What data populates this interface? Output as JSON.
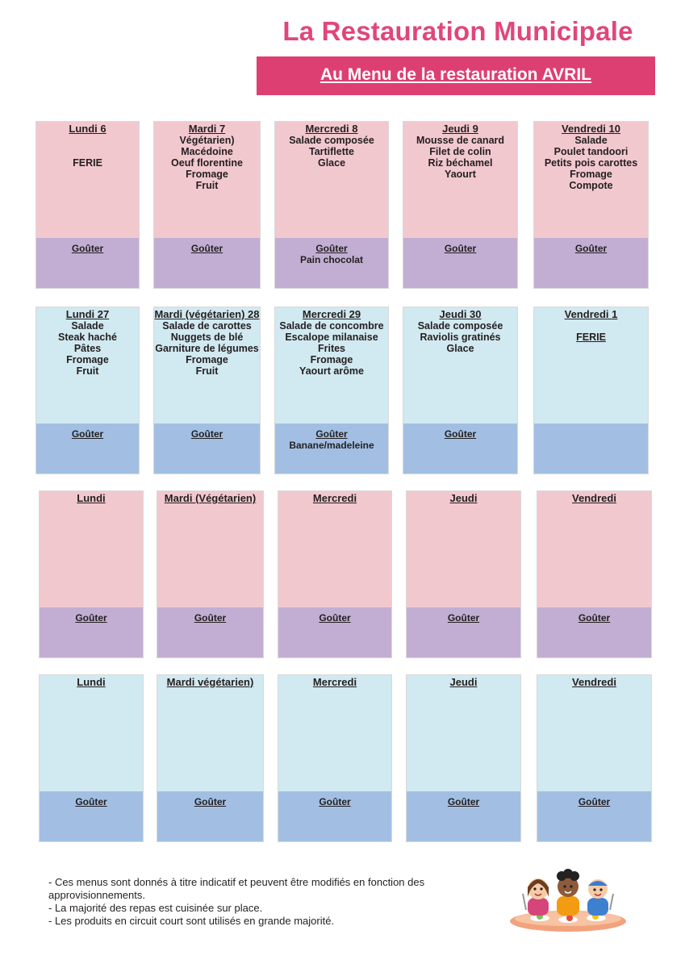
{
  "title": "La Restauration Municipale",
  "banner": "Au Menu de la restauration AVRIL",
  "weeks": [
    {
      "theme": "pink",
      "cells": [
        {
          "day": "Lundi  6",
          "items": [
            "",
            "",
            "FERIE"
          ],
          "gouter": "Goûter",
          "gouter_items": []
        },
        {
          "day": "Mardi  7",
          "items": [
            "Végétarien)",
            "Macédoine",
            "Oeuf florentine",
            "Fromage",
            "Fruit"
          ],
          "gouter": "Goûter",
          "gouter_items": []
        },
        {
          "day": "Mercredi 8",
          "items": [
            "Salade composée",
            "Tartiflette",
            "Glace"
          ],
          "gouter": "Goûter",
          "gouter_items": [
            "Pain chocolat"
          ]
        },
        {
          "day": "Jeudi 9",
          "items": [
            "Mousse de canard",
            "Filet de colin",
            "Riz béchamel",
            "Yaourt"
          ],
          "gouter": "Goûter",
          "gouter_items": []
        },
        {
          "day": "Vendredi 10",
          "items": [
            "Salade",
            "Poulet tandoori",
            "Petits pois carottes",
            "Fromage",
            "Compote"
          ],
          "gouter": "Goûter",
          "gouter_items": []
        }
      ]
    },
    {
      "theme": "blue",
      "cells": [
        {
          "day": "Lundi  27",
          "items": [
            "Salade",
            "Steak haché",
            "Pâtes",
            "Fromage",
            "Fruit"
          ],
          "gouter": "Goûter",
          "gouter_items": []
        },
        {
          "day": "Mardi  (végétarien) 28",
          "items": [
            "Salade de carottes",
            "Nuggets de blé",
            "Garniture de légumes",
            "Fromage",
            "Fruit"
          ],
          "gouter": "Goûter",
          "gouter_items": []
        },
        {
          "day": "Mercredi  29",
          "items": [
            "Salade de concombre",
            "Escalope milanaise",
            "Frites",
            "Fromage",
            "Yaourt arôme"
          ],
          "gouter": "Goûter",
          "gouter_items": [
            "Banane/madeleine"
          ]
        },
        {
          "day": "Jeudi  30",
          "items": [
            "Salade composée",
            "Raviolis gratinés",
            "Glace"
          ],
          "gouter": "Goûter",
          "gouter_items": []
        },
        {
          "day": "Vendredi  1",
          "items": [
            "",
            "FERIE"
          ],
          "gouter": "",
          "gouter_items": []
        }
      ]
    },
    {
      "theme": "pink",
      "cells": [
        {
          "day": "Lundi",
          "items": [],
          "gouter": "Goûter",
          "gouter_items": []
        },
        {
          "day": "Mardi (Végétarien)",
          "items": [],
          "gouter": "Goûter",
          "gouter_items": []
        },
        {
          "day": "Mercredi",
          "items": [],
          "gouter": "Goûter",
          "gouter_items": []
        },
        {
          "day": "Jeudi",
          "items": [],
          "gouter": "Goûter",
          "gouter_items": []
        },
        {
          "day": "Vendredi",
          "items": [],
          "gouter": "Goûter",
          "gouter_items": []
        }
      ]
    },
    {
      "theme": "blue",
      "cells": [
        {
          "day": "Lundi",
          "items": [],
          "gouter": "Goûter",
          "gouter_items": []
        },
        {
          "day": "Mardi  végétarien)",
          "items": [],
          "gouter": "Goûter",
          "gouter_items": []
        },
        {
          "day": "Mercredi",
          "items": [],
          "gouter": "Goûter",
          "gouter_items": []
        },
        {
          "day": "Jeudi",
          "items": [],
          "gouter": "Goûter",
          "gouter_items": []
        },
        {
          "day": "Vendredi",
          "items": [],
          "gouter": "Goûter",
          "gouter_items": []
        }
      ]
    }
  ],
  "notes": [
    "- Ces menus sont donnés à titre indicatif et peuvent être modifiés en fonction des approvisionnements.",
    "- La majorité des repas est cuisinée sur place.",
    "- Les produits en circuit court sont utilisés en grande majorité."
  ],
  "illustration": "children-eating-icon"
}
